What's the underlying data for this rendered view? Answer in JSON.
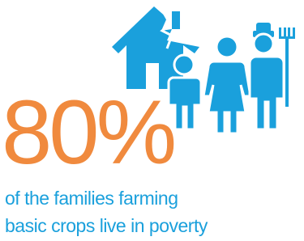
{
  "stat": "80%",
  "caption": [
    "of the families farming",
    "basic crops live in poverty"
  ]
}
